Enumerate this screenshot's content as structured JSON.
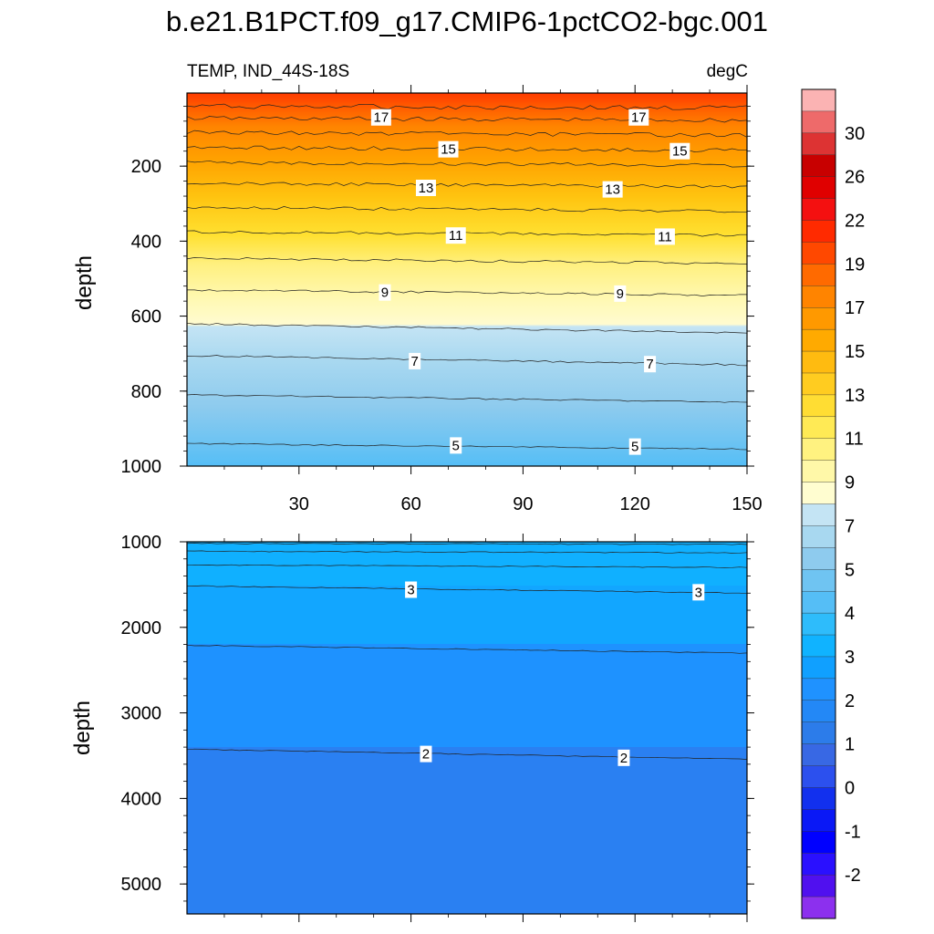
{
  "title": "b.e21.B1PCT.f09_g17.CMIP6-1pctCO2-bgc.001",
  "subtitle_left": "TEMP, IND_44S-18S",
  "subtitle_right": "degC",
  "chart_data": [
    {
      "type": "heatmap",
      "panel": "upper",
      "xlabel": "",
      "ylabel": "depth",
      "xlim": [
        0,
        150
      ],
      "ylim": [
        1000,
        5
      ],
      "x_ticks": [
        30,
        60,
        90,
        120,
        150
      ],
      "y_ticks": [
        200,
        400,
        600,
        800,
        1000
      ],
      "contours": [
        {
          "level": 18,
          "depth_start": 40,
          "depth_end": 45
        },
        {
          "level": 17,
          "depth_start": 72,
          "depth_end": 78
        },
        {
          "level": 16,
          "depth_start": 110,
          "depth_end": 118
        },
        {
          "level": 15,
          "depth_start": 150,
          "depth_end": 158
        },
        {
          "level": 14,
          "depth_start": 190,
          "depth_end": 198
        },
        {
          "level": 13,
          "depth_start": 245,
          "depth_end": 255
        },
        {
          "level": 12,
          "depth_start": 310,
          "depth_end": 320
        },
        {
          "level": 11,
          "depth_start": 375,
          "depth_end": 385
        },
        {
          "level": 10,
          "depth_start": 445,
          "depth_end": 460
        },
        {
          "level": 9,
          "depth_start": 530,
          "depth_end": 545
        },
        {
          "level": 8,
          "depth_start": 620,
          "depth_end": 645
        },
        {
          "level": 7,
          "depth_start": 705,
          "depth_end": 730
        },
        {
          "level": 6,
          "depth_start": 810,
          "depth_end": 830
        },
        {
          "level": 5,
          "depth_start": 940,
          "depth_end": 955
        }
      ],
      "contour_labels": [
        {
          "text": "17",
          "x": 52,
          "depth": 70
        },
        {
          "text": "17",
          "x": 121,
          "depth": 70
        },
        {
          "text": "15",
          "x": 70,
          "depth": 155
        },
        {
          "text": "15",
          "x": 132,
          "depth": 160
        },
        {
          "text": "13",
          "x": 64,
          "depth": 258
        },
        {
          "text": "13",
          "x": 114,
          "depth": 262
        },
        {
          "text": "11",
          "x": 72,
          "depth": 385
        },
        {
          "text": "11",
          "x": 128,
          "depth": 388
        },
        {
          "text": "9",
          "x": 53,
          "depth": 537
        },
        {
          "text": "9",
          "x": 116,
          "depth": 540
        },
        {
          "text": "7",
          "x": 61,
          "depth": 720
        },
        {
          "text": "7",
          "x": 124,
          "depth": 728
        },
        {
          "text": "5",
          "x": 72,
          "depth": 945
        },
        {
          "text": "5",
          "x": 120,
          "depth": 948
        }
      ]
    },
    {
      "type": "heatmap",
      "panel": "lower",
      "xlabel": "",
      "ylabel": "depth",
      "xlim": [
        0,
        150
      ],
      "ylim": [
        5350,
        1000
      ],
      "y_ticks": [
        1000,
        2000,
        3000,
        4000,
        5000
      ],
      "contours": [
        {
          "level": 4.5,
          "depth_start": 1020,
          "depth_end": 1030
        },
        {
          "level": 4,
          "depth_start": 1110,
          "depth_end": 1130
        },
        {
          "level": 3.5,
          "depth_start": 1270,
          "depth_end": 1300
        },
        {
          "level": 3,
          "depth_start": 1515,
          "depth_end": 1600
        },
        {
          "level": 2.5,
          "depth_start": 2210,
          "depth_end": 2300
        },
        {
          "level": 2,
          "depth_start": 3425,
          "depth_end": 3540
        }
      ],
      "contour_labels": [
        {
          "text": "3",
          "x": 60,
          "depth": 1560
        },
        {
          "text": "3",
          "x": 137,
          "depth": 1590
        },
        {
          "text": "2",
          "x": 64,
          "depth": 3480
        },
        {
          "text": "2",
          "x": 117,
          "depth": 3525
        }
      ]
    }
  ],
  "colorbar": {
    "labels": [
      "30",
      "26",
      "22",
      "19",
      "17",
      "15",
      "13",
      "11",
      "9",
      "7",
      "5",
      "4",
      "3",
      "2",
      "1",
      "0",
      "-1",
      "-2"
    ],
    "colors": [
      "#fbb3b3",
      "#ee6a6a",
      "#dd3333",
      "#c80000",
      "#e00000",
      "#f41010",
      "#ff2a00",
      "#ff4800",
      "#ff6a00",
      "#ff8400",
      "#ff9900",
      "#ffaa00",
      "#ffbb10",
      "#ffcc20",
      "#ffdd33",
      "#ffea55",
      "#fff280",
      "#fff8a8",
      "#fffdd0",
      "#c4e4f4",
      "#a8d8f0",
      "#8ecbee",
      "#6fc4f2",
      "#55bef6",
      "#2ebcfb",
      "#10b3ff",
      "#10a0ff",
      "#1f92ff",
      "#2388f6",
      "#2c7cea",
      "#3868e4",
      "#2c50ee",
      "#1230ee",
      "#0a18f6",
      "#0000ff",
      "#2a10ff",
      "#5010ef",
      "#8c30ee"
    ]
  }
}
